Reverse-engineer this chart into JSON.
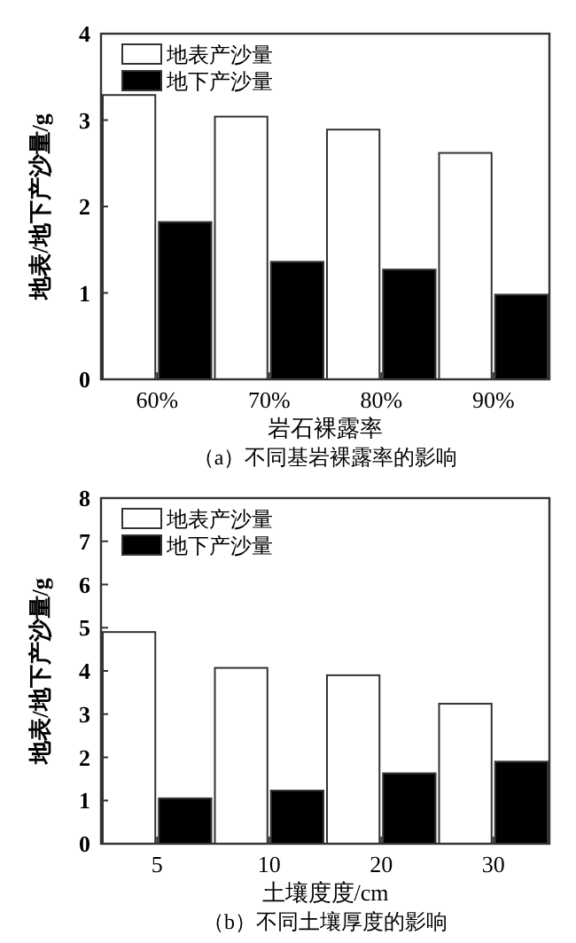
{
  "chart_data": [
    {
      "type": "bar",
      "title": "（a）不同基岩裸露率的影响",
      "xlabel": "岩石裸露率",
      "ylabel": "地表/地下产沙量/g",
      "categories": [
        "60%",
        "70%",
        "80%",
        "90%"
      ],
      "series": [
        {
          "name": "地表产沙量",
          "color": "#ffffff",
          "values": [
            3.29,
            3.04,
            2.89,
            2.62
          ]
        },
        {
          "name": "地下产沙量",
          "color": "#000000",
          "values": [
            1.82,
            1.36,
            1.27,
            0.98
          ]
        }
      ],
      "ylim": [
        0,
        4
      ],
      "yticks": [
        0,
        1,
        2,
        3,
        4
      ],
      "legend": "top left",
      "grid": false
    },
    {
      "type": "bar",
      "title": "（b）不同土壤厚度的影响",
      "xlabel": "土壤度度/cm",
      "ylabel": "地表/地下产沙量/g",
      "categories": [
        "5",
        "10",
        "20",
        "30"
      ],
      "series": [
        {
          "name": "地表产沙量",
          "color": "#ffffff",
          "values": [
            4.9,
            4.07,
            3.9,
            3.24
          ]
        },
        {
          "name": "地下产沙量",
          "color": "#000000",
          "values": [
            1.05,
            1.23,
            1.63,
            1.9
          ]
        }
      ],
      "ylim": [
        0,
        8
      ],
      "yticks": [
        0,
        1,
        2,
        3,
        4,
        5,
        6,
        7,
        8
      ],
      "legend": "top left",
      "grid": false
    }
  ]
}
